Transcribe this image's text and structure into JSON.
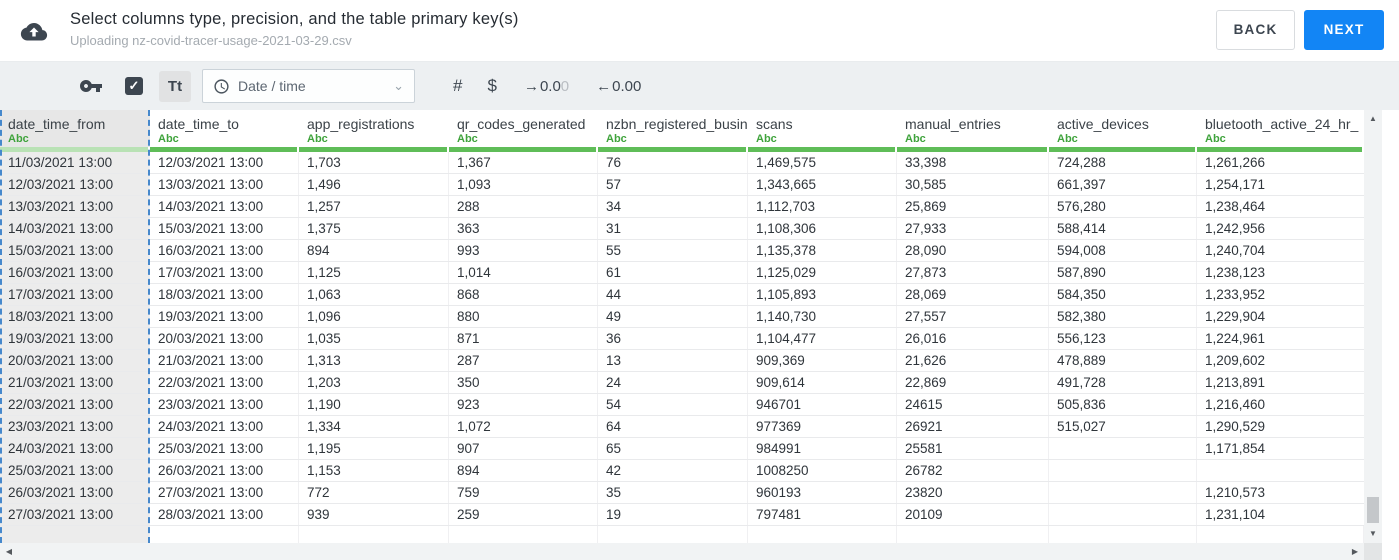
{
  "header": {
    "title": "Select columns type, precision, and the table primary key(s)",
    "subtitle": "Uploading nz-covid-tracer-usage-2021-03-29.csv",
    "back_label": "BACK",
    "next_label": "NEXT"
  },
  "toolbar": {
    "checkbox_glyph": "✓",
    "checkbox_checked": true,
    "text_type_label": "Tt",
    "type_dropdown_value": "Date / time",
    "dropdown_chevron": "⌄",
    "numeric_type_label": "#",
    "currency_type_label": "$",
    "increase_decimal": {
      "arrow": "→",
      "value": "0.0",
      "faded": "0"
    },
    "decrease_decimal": {
      "arrow": "←",
      "value": "0.00"
    }
  },
  "table": {
    "type_label": "Abc",
    "selected_column": "date_time_from",
    "columns": [
      "date_time_from",
      "date_time_to",
      "app_registrations",
      "qr_codes_generated",
      "nzbn_registered_busine",
      "scans",
      "manual_entries",
      "active_devices",
      "bluetooth_active_24_hr_"
    ],
    "rows": [
      [
        "11/03/2021 13:00",
        "12/03/2021 13:00",
        "1,703",
        "1,367",
        "76",
        "1,469,575",
        "33,398",
        "724,288",
        "1,261,266"
      ],
      [
        "12/03/2021 13:00",
        "13/03/2021 13:00",
        "1,496",
        "1,093",
        "57",
        "1,343,665",
        "30,585",
        "661,397",
        "1,254,171"
      ],
      [
        "13/03/2021 13:00",
        "14/03/2021 13:00",
        "1,257",
        "288",
        "34",
        "1,112,703",
        "25,869",
        "576,280",
        "1,238,464"
      ],
      [
        "14/03/2021 13:00",
        "15/03/2021 13:00",
        "1,375",
        "363",
        "31",
        "1,108,306",
        "27,933",
        "588,414",
        "1,242,956"
      ],
      [
        "15/03/2021 13:00",
        "16/03/2021 13:00",
        "894",
        "993",
        "55",
        "1,135,378",
        "28,090",
        "594,008",
        "1,240,704"
      ],
      [
        "16/03/2021 13:00",
        "17/03/2021 13:00",
        "1,125",
        "1,014",
        "61",
        "1,125,029",
        "27,873",
        "587,890",
        "1,238,123"
      ],
      [
        "17/03/2021 13:00",
        "18/03/2021 13:00",
        "1,063",
        "868",
        "44",
        "1,105,893",
        "28,069",
        "584,350",
        "1,233,952"
      ],
      [
        "18/03/2021 13:00",
        "19/03/2021 13:00",
        "1,096",
        "880",
        "49",
        "1,140,730",
        "27,557",
        "582,380",
        "1,229,904"
      ],
      [
        "19/03/2021 13:00",
        "20/03/2021 13:00",
        "1,035",
        "871",
        "36",
        "1,104,477",
        "26,016",
        "556,123",
        "1,224,961"
      ],
      [
        "20/03/2021 13:00",
        "21/03/2021 13:00",
        "1,313",
        "287",
        "13",
        "909,369",
        "21,626",
        "478,889",
        "1,209,602"
      ],
      [
        "21/03/2021 13:00",
        "22/03/2021 13:00",
        "1,203",
        "350",
        "24",
        "909,614",
        "22,869",
        "491,728",
        "1,213,891"
      ],
      [
        "22/03/2021 13:00",
        "23/03/2021 13:00",
        "1,190",
        "923",
        "54",
        "946701",
        "24615",
        "505,836",
        "1,216,460"
      ],
      [
        "23/03/2021 13:00",
        "24/03/2021 13:00",
        "1,334",
        "1,072",
        "64",
        "977369",
        "26921",
        "515,027",
        "1,290,529"
      ],
      [
        "24/03/2021 13:00",
        "25/03/2021 13:00",
        "1,195",
        "907",
        "65",
        "984991",
        "25581",
        "",
        "1,171,854"
      ],
      [
        "25/03/2021 13:00",
        "26/03/2021 13:00",
        "1,153",
        "894",
        "42",
        "1008250",
        "26782",
        "",
        ""
      ],
      [
        "26/03/2021 13:00",
        "27/03/2021 13:00",
        "772",
        "759",
        "35",
        "960193",
        "23820",
        "",
        "1,210,573"
      ],
      [
        "27/03/2021 13:00",
        "28/03/2021 13:00",
        "939",
        "259",
        "19",
        "797481",
        "20109",
        "",
        "1,231,104"
      ]
    ]
  },
  "scrollbar": {
    "up": "▲",
    "down": "▼",
    "left": "◀",
    "right": "▶"
  },
  "colors": {
    "accent_blue": "#1285f5",
    "green_underline": "#5fbd58",
    "type_label_green": "#3fa33c",
    "selection_dashed_blue": "#4688cc",
    "dark_slate": "#3d4650"
  }
}
